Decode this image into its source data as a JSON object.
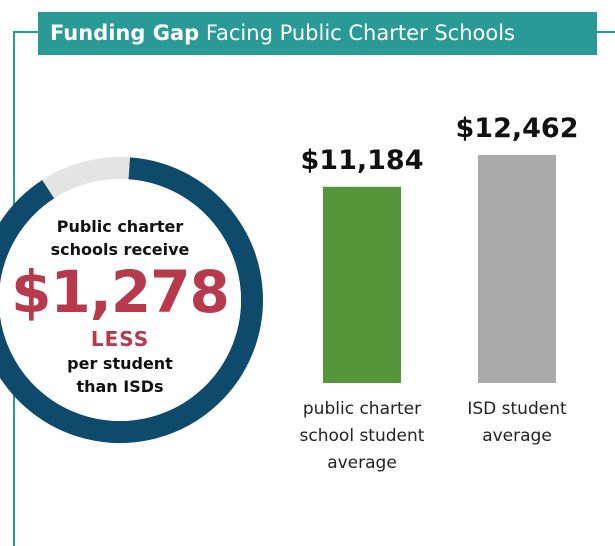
{
  "header": {
    "title_bold": "Funding Gap",
    "title_rest": "Facing Public Charter Schools"
  },
  "chart_data": [
    {
      "type": "donut",
      "values": [
        11184,
        1278
      ],
      "colors": [
        "#0d4a6b",
        "#e4e4e4"
      ],
      "center_text": {
        "top": "Public charter schools receive",
        "amount_label": "$1,278",
        "less": "LESS",
        "bottom": "per student than ISDs"
      }
    },
    {
      "type": "bar",
      "categories": [
        "public charter school student average",
        "ISD student average"
      ],
      "values": [
        11184,
        12462
      ],
      "value_labels": [
        "$11,184",
        "$12,462"
      ],
      "colors": [
        "#56963a",
        "#aaaaaa"
      ],
      "ylim": [
        3300,
        12500
      ]
    }
  ]
}
